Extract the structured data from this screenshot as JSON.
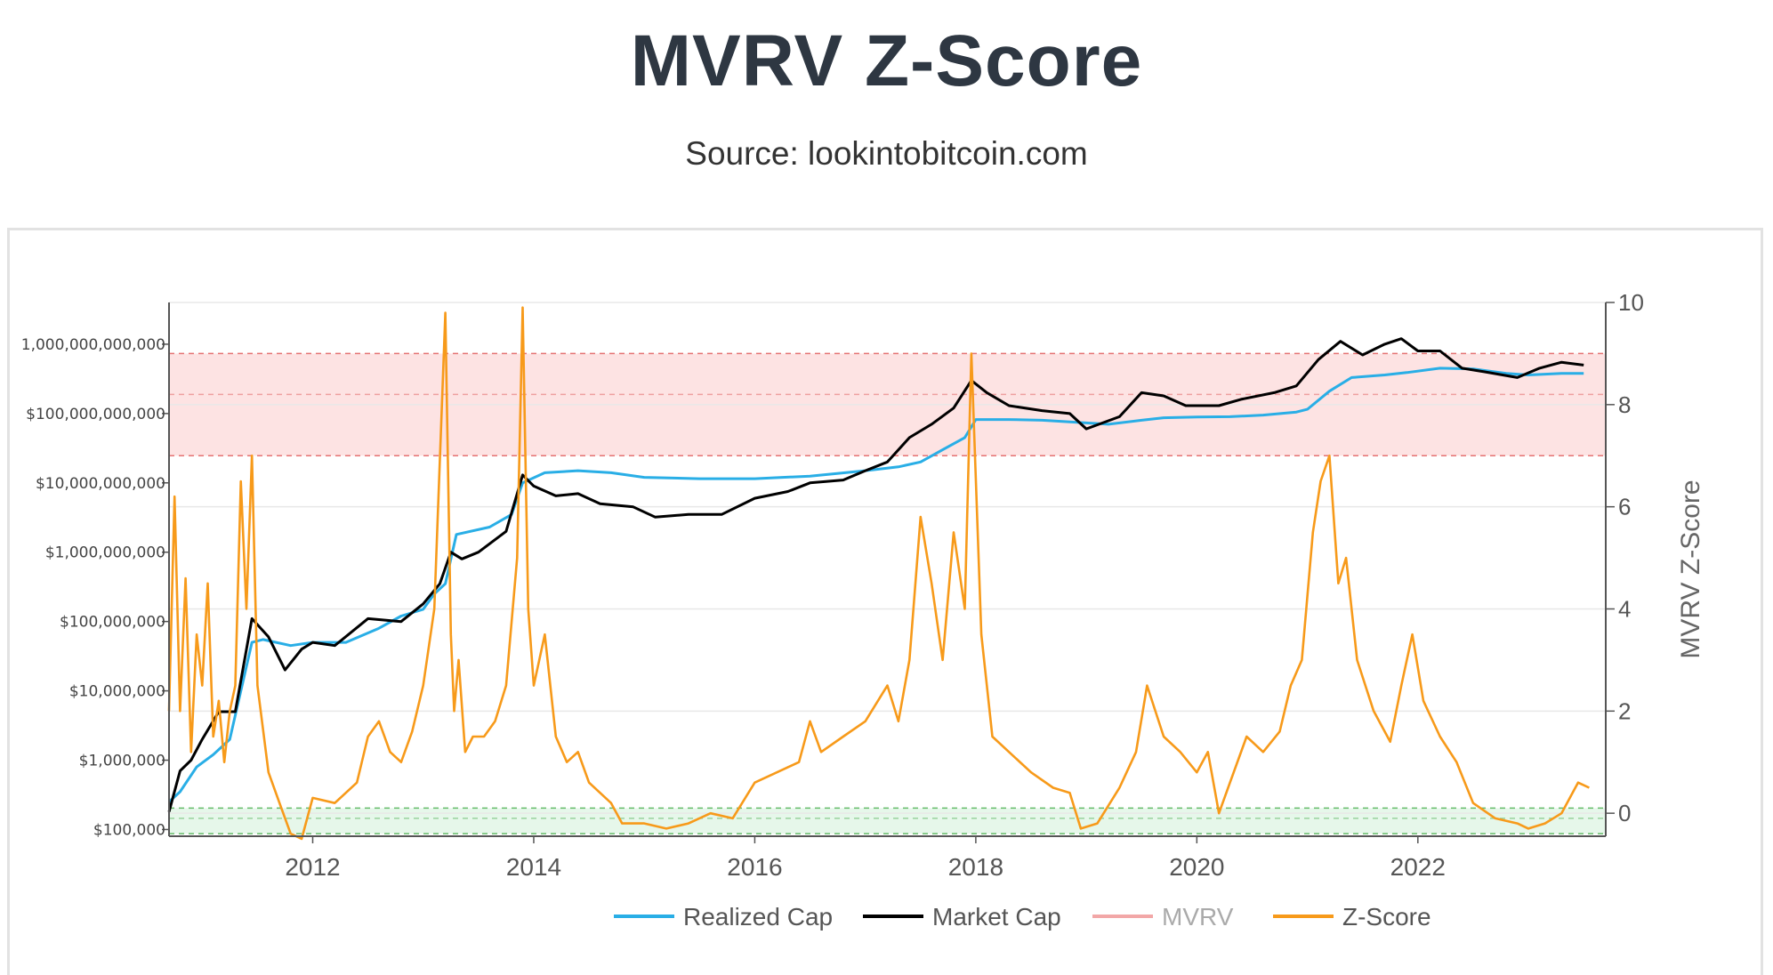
{
  "header": {
    "title": "MVRV Z-Score",
    "subtitle": "Source: lookintobitcoin.com"
  },
  "chart_data": {
    "type": "line",
    "x_axis": {
      "min": 2010.7,
      "max": 2023.7,
      "ticks": [
        "2012",
        "2014",
        "2016",
        "2018",
        "2020",
        "2022"
      ]
    },
    "y_left": {
      "scale": "log",
      "min": 80000,
      "max": 4000000000000,
      "ticks": [
        "$100,000",
        "$1,000,000",
        "$10,000,000",
        "$100,000,000",
        "$1,000,000,000",
        "$10,000,000,000",
        "$100,000,000,000",
        "1,000,000,000,000"
      ]
    },
    "y_right": {
      "label": "MVRV Z-Score",
      "min": -0.45,
      "max": 10,
      "ticks": [
        "0",
        "2",
        "4",
        "6",
        "8",
        "10"
      ]
    },
    "bands": [
      {
        "name": "red",
        "from": 7.0,
        "to": 9.0,
        "mid": 8.2,
        "color": "#fde3e3",
        "line": "#e57373"
      },
      {
        "name": "green",
        "from": -0.4,
        "to": 0.1,
        "mid": -0.1,
        "color": "#e6f7ea",
        "line": "#66bb6a"
      }
    ],
    "series": [
      {
        "name": "Realized Cap",
        "color": "#29aee6",
        "axis": "left",
        "x": [
          2010.7,
          2010.8,
          2010.95,
          2011.1,
          2011.25,
          2011.45,
          2011.55,
          2011.8,
          2012.0,
          2012.3,
          2012.6,
          2012.8,
          2013.0,
          2013.1,
          2013.2,
          2013.3,
          2013.6,
          2013.8,
          2013.9,
          2014.1,
          2014.4,
          2014.7,
          2015.0,
          2015.5,
          2016.0,
          2016.5,
          2017.0,
          2017.3,
          2017.5,
          2017.7,
          2017.9,
          2018.0,
          2018.3,
          2018.6,
          2018.9,
          2019.2,
          2019.5,
          2019.7,
          2020.0,
          2020.3,
          2020.6,
          2020.9,
          2021.0,
          2021.2,
          2021.4,
          2021.7,
          2021.9,
          2022.2,
          2022.5,
          2022.8,
          2023.0,
          2023.3,
          2023.5
        ],
        "y": [
          250000,
          350000,
          800000,
          1200000,
          2000000,
          50000000,
          55000000,
          45000000,
          50000000,
          50000000,
          80000000,
          120000000,
          150000000,
          250000000,
          350000000,
          1800000000,
          2300000000,
          3500000000,
          10000000000,
          14000000000,
          15000000000,
          14000000000,
          12000000000,
          11500000000,
          11500000000,
          12500000000,
          15000000000,
          17000000000,
          20000000000,
          30000000000,
          45000000000,
          82000000000,
          82000000000,
          80000000000,
          75000000000,
          70000000000,
          80000000000,
          87000000000,
          89000000000,
          90000000000,
          95000000000,
          105000000000,
          115000000000,
          210000000000,
          330000000000,
          360000000000,
          390000000000,
          450000000000,
          440000000000,
          380000000000,
          360000000000,
          380000000000,
          380000000000
        ]
      },
      {
        "name": "Market Cap",
        "color": "#000000",
        "axis": "left",
        "x": [
          2010.7,
          2010.8,
          2010.9,
          2011.0,
          2011.15,
          2011.3,
          2011.45,
          2011.6,
          2011.75,
          2011.9,
          2012.0,
          2012.2,
          2012.5,
          2012.8,
          2013.0,
          2013.15,
          2013.25,
          2013.35,
          2013.5,
          2013.75,
          2013.9,
          2014.0,
          2014.2,
          2014.4,
          2014.6,
          2014.9,
          2015.1,
          2015.4,
          2015.7,
          2016.0,
          2016.3,
          2016.5,
          2016.8,
          2017.0,
          2017.2,
          2017.4,
          2017.6,
          2017.8,
          2017.96,
          2018.1,
          2018.3,
          2018.6,
          2018.85,
          2019.0,
          2019.3,
          2019.5,
          2019.7,
          2019.9,
          2020.2,
          2020.4,
          2020.7,
          2020.9,
          2021.1,
          2021.3,
          2021.5,
          2021.7,
          2021.85,
          2022.0,
          2022.2,
          2022.4,
          2022.6,
          2022.9,
          2023.1,
          2023.3,
          2023.5
        ],
        "y": [
          180000,
          700000,
          1000000,
          2000000,
          5000000,
          5000000,
          110000000,
          60000000,
          20000000,
          40000000,
          50000000,
          45000000,
          110000000,
          100000000,
          180000000,
          350000000,
          1000000000,
          800000000,
          1000000000,
          2000000000,
          13000000000,
          9000000000,
          6500000000,
          7000000000,
          5000000000,
          4500000000,
          3200000000,
          3500000000,
          3500000000,
          6000000000,
          7500000000,
          10000000000,
          11000000000,
          15000000000,
          20000000000,
          45000000000,
          70000000000,
          120000000000,
          300000000000,
          200000000000,
          130000000000,
          110000000000,
          100000000000,
          60000000000,
          90000000000,
          200000000000,
          180000000000,
          130000000000,
          130000000000,
          160000000000,
          200000000000,
          250000000000,
          600000000000,
          1100000000000,
          700000000000,
          1000000000000,
          1200000000000,
          800000000000,
          800000000000,
          450000000000,
          400000000000,
          330000000000,
          450000000000,
          550000000000,
          500000000000
        ]
      },
      {
        "name": "MVRV",
        "color": "#f2a7a7",
        "axis": "right",
        "x": [],
        "y": []
      },
      {
        "name": "Z-Score",
        "color": "#f79a1a",
        "axis": "right",
        "x": [
          2010.7,
          2010.75,
          2010.8,
          2010.85,
          2010.9,
          2010.95,
          2011.0,
          2011.05,
          2011.1,
          2011.15,
          2011.2,
          2011.25,
          2011.3,
          2011.35,
          2011.4,
          2011.45,
          2011.5,
          2011.6,
          2011.7,
          2011.8,
          2011.9,
          2012.0,
          2012.2,
          2012.4,
          2012.5,
          2012.6,
          2012.7,
          2012.8,
          2012.9,
          2013.0,
          2013.1,
          2013.2,
          2013.25,
          2013.28,
          2013.32,
          2013.38,
          2013.45,
          2013.55,
          2013.65,
          2013.75,
          2013.85,
          2013.9,
          2013.95,
          2014.0,
          2014.1,
          2014.2,
          2014.3,
          2014.4,
          2014.5,
          2014.6,
          2014.7,
          2014.8,
          2015.0,
          2015.2,
          2015.4,
          2015.6,
          2015.8,
          2016.0,
          2016.2,
          2016.4,
          2016.5,
          2016.6,
          2016.8,
          2017.0,
          2017.2,
          2017.3,
          2017.4,
          2017.5,
          2017.6,
          2017.7,
          2017.8,
          2017.9,
          2017.96,
          2018.05,
          2018.15,
          2018.3,
          2018.5,
          2018.7,
          2018.85,
          2018.95,
          2019.1,
          2019.3,
          2019.45,
          2019.55,
          2019.7,
          2019.85,
          2020.0,
          2020.1,
          2020.2,
          2020.3,
          2020.45,
          2020.6,
          2020.75,
          2020.85,
          2020.95,
          2021.05,
          2021.12,
          2021.2,
          2021.28,
          2021.35,
          2021.45,
          2021.6,
          2021.75,
          2021.85,
          2021.95,
          2022.05,
          2022.2,
          2022.35,
          2022.5,
          2022.7,
          2022.9,
          2023.0,
          2023.15,
          2023.3,
          2023.45,
          2023.55
        ],
        "y": [
          2.0,
          6.2,
          2.0,
          4.6,
          1.2,
          3.5,
          2.5,
          4.5,
          1.5,
          2.2,
          1.0,
          2.0,
          2.5,
          6.5,
          4.0,
          7.0,
          2.5,
          0.8,
          0.2,
          -0.4,
          -0.5,
          0.3,
          0.2,
          0.6,
          1.5,
          1.8,
          1.2,
          1.0,
          1.6,
          2.5,
          4.0,
          9.8,
          3.5,
          2.0,
          3.0,
          1.2,
          1.5,
          1.5,
          1.8,
          2.5,
          5.0,
          9.9,
          4.0,
          2.5,
          3.5,
          1.5,
          1.0,
          1.2,
          0.6,
          0.4,
          0.2,
          -0.2,
          -0.2,
          -0.3,
          -0.2,
          0.0,
          -0.1,
          0.6,
          0.8,
          1.0,
          1.8,
          1.2,
          1.5,
          1.8,
          2.5,
          1.8,
          3.0,
          5.8,
          4.5,
          3.0,
          5.5,
          4.0,
          9.0,
          3.5,
          1.5,
          1.2,
          0.8,
          0.5,
          0.4,
          -0.3,
          -0.2,
          0.5,
          1.2,
          2.5,
          1.5,
          1.2,
          0.8,
          1.2,
          0.0,
          0.6,
          1.5,
          1.2,
          1.6,
          2.5,
          3.0,
          5.5,
          6.5,
          7.0,
          4.5,
          5.0,
          3.0,
          2.0,
          1.4,
          2.5,
          3.5,
          2.2,
          1.5,
          1.0,
          0.2,
          -0.1,
          -0.2,
          -0.3,
          -0.2,
          0.0,
          0.6,
          0.5
        ]
      }
    ],
    "legend_position": "bottom-center"
  }
}
